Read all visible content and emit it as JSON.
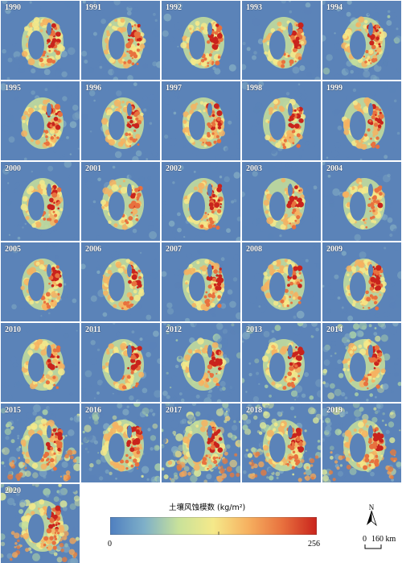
{
  "panels": [
    {
      "year": "1990"
    },
    {
      "year": "1991"
    },
    {
      "year": "1992"
    },
    {
      "year": "1993"
    },
    {
      "year": "1994"
    },
    {
      "year": "1995"
    },
    {
      "year": "1996"
    },
    {
      "year": "1997"
    },
    {
      "year": "1998"
    },
    {
      "year": "1999"
    },
    {
      "year": "2000"
    },
    {
      "year": "2001"
    },
    {
      "year": "2002"
    },
    {
      "year": "2003"
    },
    {
      "year": "2004"
    },
    {
      "year": "2005"
    },
    {
      "year": "2006"
    },
    {
      "year": "2007"
    },
    {
      "year": "2008"
    },
    {
      "year": "2009"
    },
    {
      "year": "2010"
    },
    {
      "year": "2011"
    },
    {
      "year": "2012"
    },
    {
      "year": "2013"
    },
    {
      "year": "2014"
    },
    {
      "year": "2015"
    },
    {
      "year": "2016"
    },
    {
      "year": "2017"
    },
    {
      "year": "2018"
    },
    {
      "year": "2019"
    },
    {
      "year": "2020"
    }
  ],
  "legend": {
    "title": "土壤风蚀模数 (kg/m²)",
    "min_label": "0",
    "max_label": "256",
    "colors": [
      "#4f7fc0",
      "#7fb0c8",
      "#c9e29a",
      "#f5e98a",
      "#f6b160",
      "#e8713e",
      "#c9231c"
    ]
  },
  "north_arrow": {
    "label": "N"
  },
  "scale_bar": {
    "label_left": "0",
    "label_right": "160 km"
  }
}
